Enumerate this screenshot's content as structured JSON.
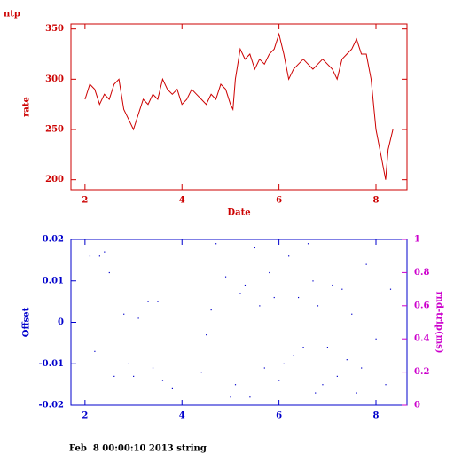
{
  "title": "ntp",
  "footer": "Feb  8 00:00:10 2013 string",
  "chart_data": [
    {
      "type": "line",
      "color": "#cc0000",
      "ylabel": "rate",
      "xlabel": "Date",
      "xlim": [
        1.71,
        8.64
      ],
      "xticks": [
        2,
        4,
        6,
        8
      ],
      "ylim": [
        190,
        355
      ],
      "yticks": [
        200,
        250,
        300,
        350
      ],
      "x": [
        2.0,
        2.1,
        2.2,
        2.3,
        2.4,
        2.5,
        2.6,
        2.7,
        2.8,
        2.9,
        3.0,
        3.1,
        3.2,
        3.3,
        3.4,
        3.5,
        3.6,
        3.7,
        3.8,
        3.9,
        4.0,
        4.1,
        4.2,
        4.3,
        4.4,
        4.5,
        4.6,
        4.7,
        4.8,
        4.9,
        5.0,
        5.05,
        5.1,
        5.2,
        5.3,
        5.4,
        5.5,
        5.6,
        5.7,
        5.8,
        5.9,
        6.0,
        6.1,
        6.2,
        6.3,
        6.4,
        6.5,
        6.6,
        6.7,
        6.8,
        6.9,
        7.0,
        7.1,
        7.2,
        7.3,
        7.4,
        7.5,
        7.6,
        7.7,
        7.8,
        7.9,
        8.0,
        8.1,
        8.2,
        8.25,
        8.3,
        8.35
      ],
      "values": [
        280,
        295,
        290,
        275,
        285,
        280,
        295,
        300,
        270,
        260,
        250,
        265,
        280,
        275,
        285,
        280,
        300,
        290,
        285,
        290,
        275,
        280,
        290,
        285,
        280,
        275,
        285,
        280,
        295,
        290,
        275,
        270,
        300,
        330,
        320,
        325,
        310,
        320,
        315,
        325,
        330,
        345,
        325,
        300,
        310,
        315,
        320,
        315,
        310,
        315,
        320,
        315,
        310,
        300,
        320,
        325,
        330,
        340,
        325,
        325,
        300,
        250,
        225,
        200,
        230,
        240,
        250
      ]
    },
    {
      "type": "scatter",
      "color": "#0000cc",
      "ylabel": "Offset",
      "y2label": "rnd-trip(ms)",
      "y2color": "#cc00cc",
      "xlim": [
        1.71,
        8.64
      ],
      "xticks": [
        2,
        4,
        6,
        8
      ],
      "ylim": [
        -0.02,
        0.02
      ],
      "yticks": [
        -0.02,
        -0.01,
        0,
        0.01,
        0.02
      ],
      "y2lim": [
        0,
        1
      ],
      "y2ticks": [
        0,
        0.2,
        0.4,
        0.6,
        0.8,
        1
      ],
      "x": [
        2.1,
        2.2,
        2.3,
        2.4,
        2.5,
        2.6,
        2.8,
        2.9,
        3.0,
        3.1,
        3.3,
        3.4,
        3.5,
        3.6,
        3.8,
        4.4,
        4.5,
        4.6,
        4.7,
        4.9,
        5.0,
        5.1,
        5.2,
        5.3,
        5.4,
        5.5,
        5.6,
        5.7,
        5.8,
        5.9,
        6.0,
        6.1,
        6.2,
        6.3,
        6.4,
        6.5,
        6.6,
        6.7,
        6.75,
        6.8,
        6.9,
        7.0,
        7.1,
        7.2,
        7.3,
        7.4,
        7.5,
        7.6,
        7.7,
        7.8,
        8.0,
        8.2,
        8.3
      ],
      "values": [
        0.016,
        -0.007,
        0.016,
        0.017,
        0.012,
        -0.013,
        0.002,
        -0.01,
        -0.013,
        0.001,
        0.005,
        -0.011,
        0.005,
        -0.014,
        -0.016,
        -0.012,
        -0.003,
        0.003,
        0.019,
        0.011,
        -0.018,
        -0.015,
        0.007,
        0.009,
        -0.018,
        0.018,
        0.004,
        -0.011,
        0.012,
        0.006,
        -0.014,
        -0.01,
        0.016,
        -0.008,
        0.006,
        -0.006,
        0.019,
        0.01,
        -0.017,
        0.004,
        -0.015,
        -0.006,
        0.009,
        -0.013,
        0.008,
        -0.009,
        0.002,
        -0.017,
        -0.011,
        0.014,
        -0.004,
        -0.015,
        0.008
      ]
    }
  ]
}
